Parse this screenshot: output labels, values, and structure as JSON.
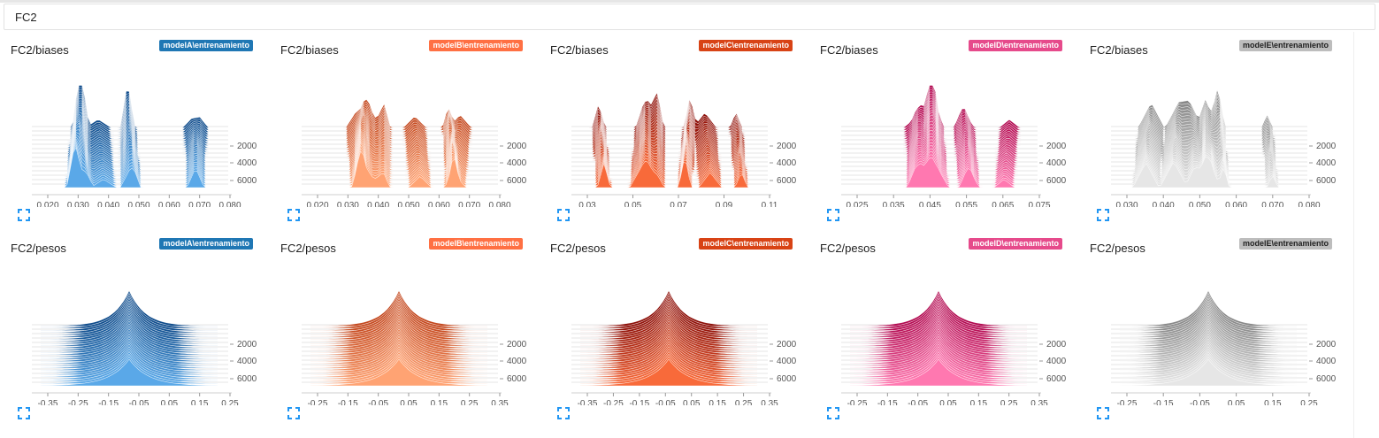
{
  "group": {
    "title": "FC2"
  },
  "runs": [
    {
      "name": "modelA\\entrenamiento",
      "color": "#1f77b4",
      "dark": "#0d4a8a",
      "light": "#5aa8e8",
      "badge_text_light": false
    },
    {
      "name": "modelB\\entrenamiento",
      "color": "#ff7043",
      "dark": "#c3461c",
      "light": "#ffa373",
      "badge_text_light": false
    },
    {
      "name": "modelC\\entrenamiento",
      "color": "#d84315",
      "dark": "#8c0e07",
      "light": "#f86a3a",
      "badge_text_light": false
    },
    {
      "name": "modelD\\entrenamiento",
      "color": "#e64a8b",
      "dark": "#b1084f",
      "light": "#ff78b0",
      "badge_text_light": false
    },
    {
      "name": "modelE\\entrenamiento",
      "color": "#bdbdbd",
      "dark": "#888888",
      "light": "#e6e6e6",
      "badge_text_light": true
    }
  ],
  "cards": [
    {
      "tag": "FC2/biases",
      "run": 0,
      "kind": "biases",
      "x_ticks": [
        "0.020",
        "0.030",
        "0.040",
        "0.050",
        "0.060",
        "0.070",
        "0.080"
      ],
      "y_ticks": [
        "2000",
        "4000",
        "6000"
      ]
    },
    {
      "tag": "FC2/biases",
      "run": 1,
      "kind": "biases",
      "x_ticks": [
        "0.020",
        "0.030",
        "0.040",
        "0.050",
        "0.060",
        "0.070",
        "0.080"
      ],
      "y_ticks": [
        "2000",
        "4000",
        "6000"
      ]
    },
    {
      "tag": "FC2/biases",
      "run": 2,
      "kind": "biases",
      "x_ticks": [
        "0.03",
        "0.05",
        "0.07",
        "0.09",
        "0.11"
      ],
      "y_ticks": [
        "2000",
        "4000",
        "6000"
      ]
    },
    {
      "tag": "FC2/biases",
      "run": 3,
      "kind": "biases",
      "x_ticks": [
        "0.025",
        "0.035",
        "0.045",
        "0.055",
        "0.065",
        "0.075"
      ],
      "y_ticks": [
        "2000",
        "4000",
        "6000"
      ]
    },
    {
      "tag": "FC2/biases",
      "run": 4,
      "kind": "biases",
      "x_ticks": [
        "0.030",
        "0.040",
        "0.050",
        "0.060",
        "0.070",
        "0.080"
      ],
      "y_ticks": [
        "2000",
        "4000",
        "6000"
      ]
    },
    {
      "tag": "FC2/pesos",
      "run": 0,
      "kind": "pesos",
      "x_ticks": [
        "-0.35",
        "-0.25",
        "-0.15",
        "-0.05",
        "0.05",
        "0.15",
        "0.25"
      ],
      "y_ticks": [
        "2000",
        "4000",
        "6000"
      ]
    },
    {
      "tag": "FC2/pesos",
      "run": 1,
      "kind": "pesos",
      "x_ticks": [
        "-0.25",
        "-0.15",
        "-0.05",
        "0.05",
        "0.15",
        "0.25",
        "0.35"
      ],
      "y_ticks": [
        "2000",
        "4000",
        "6000"
      ]
    },
    {
      "tag": "FC2/pesos",
      "run": 2,
      "kind": "pesos",
      "x_ticks": [
        "-0.35",
        "-0.25",
        "-0.15",
        "-0.05",
        "0.05",
        "0.15",
        "0.25",
        "0.35"
      ],
      "y_ticks": [
        "2000",
        "4000",
        "6000"
      ]
    },
    {
      "tag": "FC2/pesos",
      "run": 3,
      "kind": "pesos",
      "x_ticks": [
        "-0.25",
        "-0.15",
        "-0.05",
        "0.05",
        "0.15",
        "0.25",
        "0.35"
      ],
      "y_ticks": [
        "2000",
        "4000",
        "6000"
      ]
    },
    {
      "tag": "FC2/pesos",
      "run": 4,
      "kind": "pesos",
      "x_ticks": [
        "-0.25",
        "-0.15",
        "-0.05",
        "0.05",
        "0.15",
        "0.25"
      ],
      "y_ticks": [
        "2000",
        "4000",
        "6000"
      ]
    }
  ],
  "icons": {
    "expand": "fullscreen-expand-icon"
  }
}
